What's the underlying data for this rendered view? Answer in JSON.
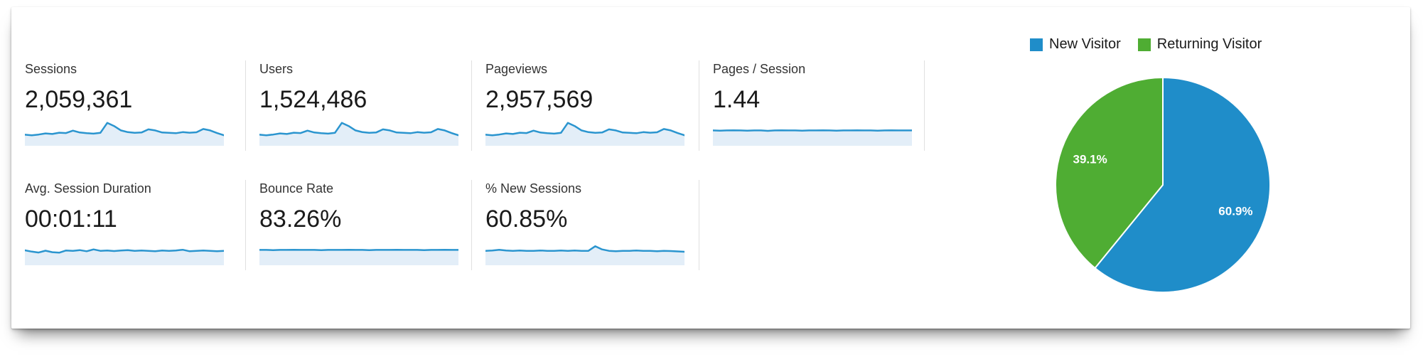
{
  "report": {
    "source": "analytics-overview-panel"
  },
  "metrics": {
    "rows": [
      [
        {
          "label": "Sessions",
          "value": "2,059,361"
        },
        {
          "label": "Users",
          "value": "1,524,486"
        },
        {
          "label": "Pageviews",
          "value": "2,957,569"
        },
        {
          "label": "Pages / Session",
          "value": "1.44"
        }
      ],
      [
        {
          "label": "Avg. Session Duration",
          "value": "00:01:11"
        },
        {
          "label": "Bounce Rate",
          "value": "83.26%"
        },
        {
          "label": "% New Sessions",
          "value": "60.85%"
        }
      ]
    ]
  },
  "colors": {
    "pie_blue": "#1f8dc9",
    "pie_green": "#4fad33",
    "spark_line": "#2b95cf",
    "spark_fill": "#e3eef8",
    "divider": "#e0e0e0",
    "label_text": "#333333",
    "value_text": "#1a1a1a"
  },
  "chart_data": [
    {
      "type": "pie",
      "title": "",
      "legend_position": "top-right",
      "start_angle_deg": 0,
      "direction": "clockwise",
      "border_color": "#ffffff",
      "slices": [
        {
          "label": "New Visitor",
          "value": 60.9,
          "display": "60.9%",
          "color": "#1f8dc9"
        },
        {
          "label": "Returning Visitor",
          "value": 39.1,
          "display": "39.1%",
          "color": "#4fad33"
        }
      ]
    },
    {
      "type": "area",
      "subtype": "sparklines",
      "line_color": "#2b95cf",
      "fill_color": "#e3eef8",
      "value_scale": "relative-0-1",
      "series": [
        {
          "name": "Sessions",
          "values": [
            0.33,
            0.3,
            0.34,
            0.4,
            0.37,
            0.44,
            0.42,
            0.55,
            0.45,
            0.41,
            0.39,
            0.43,
            0.97,
            0.8,
            0.56,
            0.47,
            0.43,
            0.45,
            0.62,
            0.56,
            0.45,
            0.43,
            0.41,
            0.47,
            0.44,
            0.46,
            0.64,
            0.56,
            0.42,
            0.3
          ]
        },
        {
          "name": "Users",
          "values": [
            0.33,
            0.3,
            0.34,
            0.4,
            0.37,
            0.44,
            0.42,
            0.55,
            0.45,
            0.41,
            0.39,
            0.43,
            0.97,
            0.8,
            0.56,
            0.47,
            0.43,
            0.45,
            0.62,
            0.56,
            0.45,
            0.43,
            0.41,
            0.47,
            0.44,
            0.46,
            0.64,
            0.56,
            0.42,
            0.3
          ]
        },
        {
          "name": "Pageviews",
          "values": [
            0.33,
            0.3,
            0.34,
            0.4,
            0.37,
            0.44,
            0.42,
            0.55,
            0.45,
            0.41,
            0.39,
            0.43,
            0.97,
            0.8,
            0.56,
            0.47,
            0.43,
            0.45,
            0.62,
            0.56,
            0.45,
            0.43,
            0.41,
            0.47,
            0.44,
            0.46,
            0.64,
            0.56,
            0.42,
            0.3
          ]
        },
        {
          "name": "Pages / Session",
          "values": [
            0.56,
            0.55,
            0.56,
            0.57,
            0.56,
            0.55,
            0.56,
            0.56,
            0.54,
            0.56,
            0.57,
            0.56,
            0.56,
            0.55,
            0.56,
            0.56,
            0.57,
            0.56,
            0.55,
            0.56,
            0.56,
            0.57,
            0.56,
            0.56,
            0.55,
            0.56,
            0.57,
            0.56,
            0.56,
            0.56
          ]
        },
        {
          "name": "Avg. Session Duration",
          "values": [
            0.54,
            0.47,
            0.42,
            0.52,
            0.44,
            0.41,
            0.53,
            0.51,
            0.55,
            0.49,
            0.59,
            0.51,
            0.53,
            0.5,
            0.53,
            0.55,
            0.51,
            0.53,
            0.51,
            0.49,
            0.53,
            0.51,
            0.53,
            0.57,
            0.49,
            0.51,
            0.53,
            0.51,
            0.49,
            0.51
          ]
        },
        {
          "name": "Bounce Rate",
          "values": [
            0.56,
            0.56,
            0.55,
            0.56,
            0.56,
            0.57,
            0.56,
            0.56,
            0.56,
            0.55,
            0.56,
            0.56,
            0.56,
            0.57,
            0.56,
            0.56,
            0.55,
            0.56,
            0.56,
            0.56,
            0.57,
            0.56,
            0.56,
            0.56,
            0.55,
            0.56,
            0.56,
            0.57,
            0.56,
            0.56
          ]
        },
        {
          "name": "% New Sessions",
          "values": [
            0.51,
            0.53,
            0.57,
            0.53,
            0.51,
            0.53,
            0.51,
            0.51,
            0.53,
            0.51,
            0.51,
            0.53,
            0.51,
            0.53,
            0.51,
            0.51,
            0.76,
            0.59,
            0.51,
            0.49,
            0.51,
            0.51,
            0.53,
            0.51,
            0.51,
            0.49,
            0.51,
            0.5,
            0.48,
            0.46
          ]
        }
      ]
    }
  ]
}
